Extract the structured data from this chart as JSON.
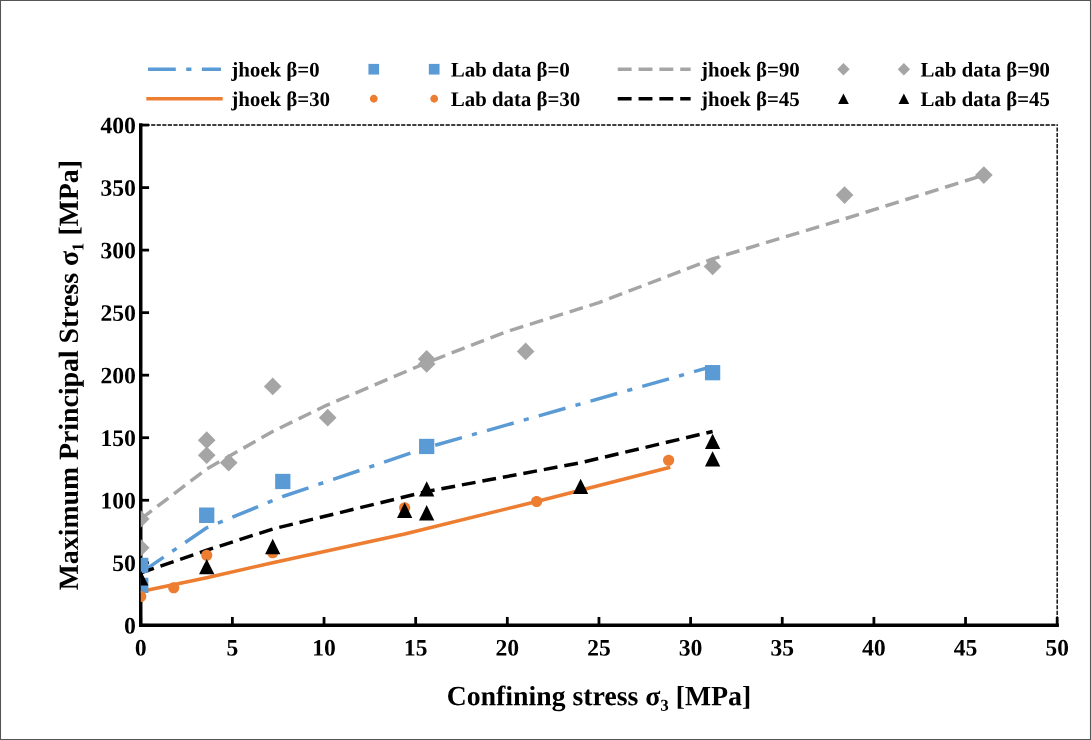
{
  "chart_data": {
    "type": "scatter",
    "xlabel": "Confining stress σ₃ [MPa]",
    "ylabel": "Maximum Principal Stress σ₁ [MPa]",
    "xlim": [
      0,
      50
    ],
    "xticks": [
      0,
      5,
      10,
      15,
      20,
      25,
      30,
      35,
      40,
      45,
      50
    ],
    "ylim": [
      0,
      400
    ],
    "yticks": [
      0,
      50,
      100,
      150,
      200,
      250,
      300,
      350,
      400
    ],
    "grid": false,
    "legend": "top",
    "series": [
      {
        "name": "jhoek β=0",
        "type": "line",
        "line_style": "dashdot",
        "marker": "none",
        "color": "#5b9bd5",
        "x": [
          0,
          3.6,
          7.75,
          15.6,
          31.2
        ],
        "values": [
          42,
          78,
          103,
          142,
          207
        ]
      },
      {
        "name": "Lab data β=0",
        "type": "scatter",
        "marker": "square",
        "color": "#5b9bd5",
        "x": [
          0,
          0,
          3.6,
          7.75,
          15.6,
          31.2
        ],
        "values": [
          48,
          32,
          88,
          115,
          143,
          202
        ]
      },
      {
        "name": "jhoek β=90",
        "type": "line",
        "line_style": "dashed",
        "marker": "none",
        "color": "#a5a5a5",
        "x": [
          0,
          3.6,
          7.2,
          10,
          15.6,
          20,
          25,
          31.2,
          38.4,
          46
        ],
        "values": [
          85,
          125,
          155,
          175,
          210,
          235,
          258,
          293,
          325,
          360
        ]
      },
      {
        "name": "Lab data β=90",
        "type": "scatter",
        "marker": "diamond",
        "color": "#a5a5a5",
        "x": [
          0,
          0,
          3.6,
          3.6,
          4.8,
          7.2,
          10.2,
          15.6,
          15.6,
          21,
          31.2,
          38.4,
          46
        ],
        "values": [
          85,
          62,
          148,
          136,
          130,
          191,
          166,
          213,
          209,
          219,
          287,
          344,
          360
        ]
      },
      {
        "name": "jhoek β=30",
        "type": "line",
        "line_style": "solid",
        "marker": "none",
        "color": "#ed7d31",
        "x": [
          0,
          3.6,
          7.2,
          14.4,
          21.6,
          28.8
        ],
        "values": [
          27,
          38,
          50,
          73,
          99,
          126
        ]
      },
      {
        "name": "Lab data β=30",
        "type": "scatter",
        "marker": "circle",
        "color": "#ed7d31",
        "x": [
          0,
          1.8,
          3.6,
          7.2,
          14.4,
          21.6,
          28.8
        ],
        "values": [
          23,
          30,
          56,
          58,
          94,
          99,
          132
        ]
      },
      {
        "name": "jhoek β=45",
        "type": "line",
        "line_style": "dashed",
        "marker": "none",
        "color": "#000000",
        "x": [
          0,
          3.6,
          7.2,
          15.6,
          24,
          31.2
        ],
        "values": [
          42,
          60,
          77,
          107,
          130,
          155
        ]
      },
      {
        "name": "Lab data β=45",
        "type": "scatter",
        "marker": "triangle",
        "color": "#000000",
        "x": [
          0,
          3.6,
          7.2,
          14.4,
          15.6,
          15.6,
          24,
          31.2,
          31.2
        ],
        "values": [
          38,
          47,
          63,
          92,
          109,
          90,
          111,
          147,
          133
        ]
      }
    ]
  }
}
